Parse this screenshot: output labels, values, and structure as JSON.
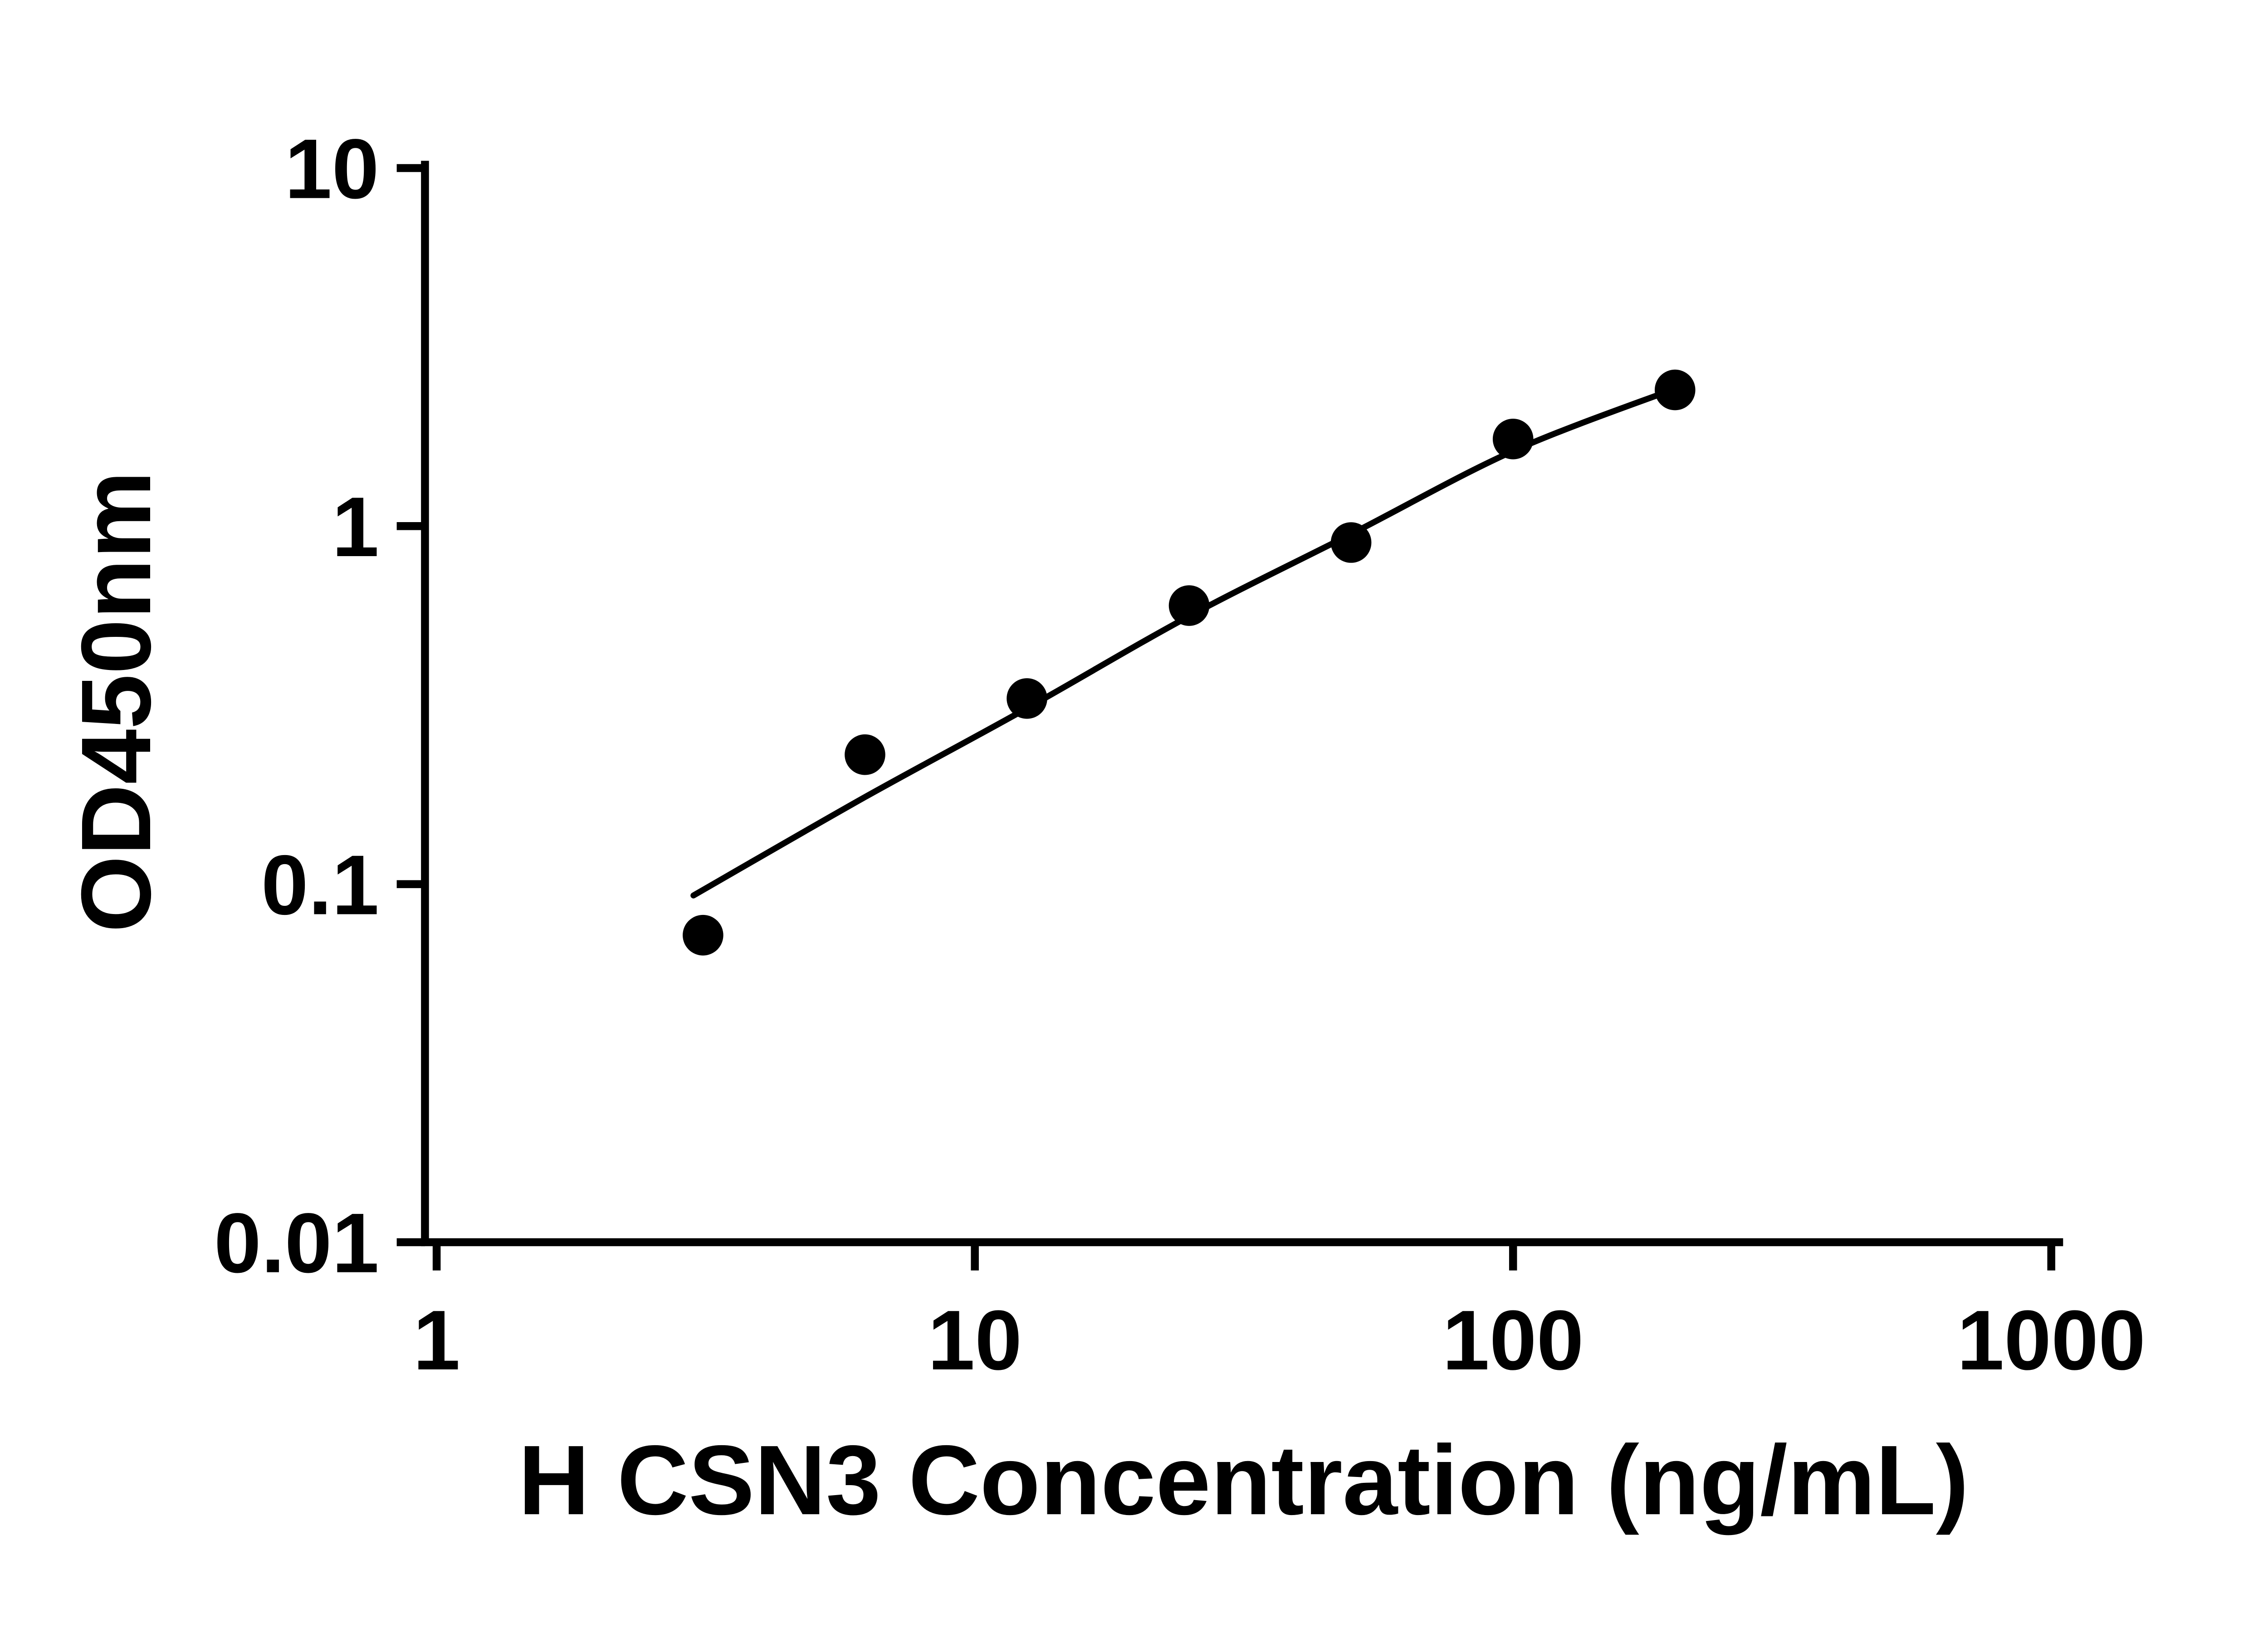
{
  "figure": {
    "background": "#ffffff"
  },
  "chart_data": {
    "type": "scatter",
    "title": "",
    "xlabel": "H CSN3 Concentration (ng/mL)",
    "ylabel": "OD450nm",
    "x_scale": "log10",
    "y_scale": "log10",
    "xlim": [
      1,
      1000
    ],
    "ylim": [
      0.01,
      10
    ],
    "x_ticks": [
      1,
      10,
      100,
      1000
    ],
    "x_tick_labels": [
      "1",
      "10",
      "100",
      "1000"
    ],
    "y_ticks": [
      0.01,
      0.1,
      1,
      10
    ],
    "y_tick_labels": [
      "0.01",
      "0.1",
      "1",
      "10"
    ],
    "grid": false,
    "legend": "none",
    "marker_color": "#000000",
    "line_color": "#000000",
    "axis_color": "#000000",
    "points": [
      {
        "x": 3.125,
        "y": 0.072
      },
      {
        "x": 6.25,
        "y": 0.23
      },
      {
        "x": 12.5,
        "y": 0.33
      },
      {
        "x": 25,
        "y": 0.6
      },
      {
        "x": 50,
        "y": 0.9
      },
      {
        "x": 100,
        "y": 1.75
      },
      {
        "x": 200,
        "y": 2.4
      }
    ],
    "fit_curve": [
      {
        "x": 3.0,
        "y": 0.093
      },
      {
        "x": 6.25,
        "y": 0.175
      },
      {
        "x": 12.5,
        "y": 0.31
      },
      {
        "x": 25,
        "y": 0.56
      },
      {
        "x": 50,
        "y": 0.95
      },
      {
        "x": 100,
        "y": 1.62
      },
      {
        "x": 200,
        "y": 2.42
      }
    ]
  }
}
